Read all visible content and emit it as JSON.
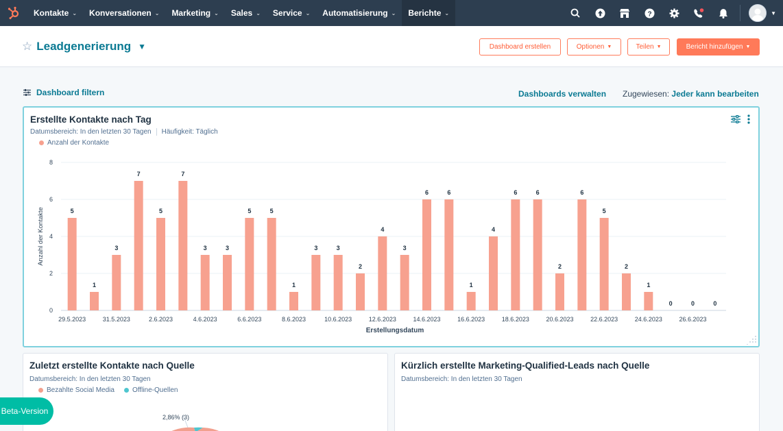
{
  "topnav": {
    "items": [
      "Kontakte",
      "Konversationen",
      "Marketing",
      "Sales",
      "Service",
      "Automatisierung",
      "Berichte"
    ],
    "active_index": 6,
    "brand_color": "#ff7a59"
  },
  "header": {
    "title": "Leadgenerierung",
    "buttons": {
      "create_dashboard": "Dashboard erstellen",
      "options": "Optionen",
      "share": "Teilen",
      "add_report": "Bericht hinzufügen"
    }
  },
  "filterbar": {
    "filter_label": "Dashboard filtern",
    "manage_label": "Dashboards verwalten",
    "assigned_label": "Zugewiesen:",
    "assigned_value": "Jeder kann bearbeiten"
  },
  "card1": {
    "title": "Erstellte Kontakte nach Tag",
    "date_range": "Datumsbereich: In den letzten 30 Tagen",
    "frequency": "Häufigkeit: Täglich"
  },
  "card2": {
    "title": "Zuletzt erstellte Kontakte nach Quelle",
    "date_range": "Datumsbereich: In den letzten 30 Tagen",
    "legend": [
      {
        "name": "Bezahlte Social Media",
        "color": "#f2a08e"
      },
      {
        "name": "Offline-Quellen",
        "color": "#4fc6cf"
      }
    ],
    "pie_label": "2,86% (3)"
  },
  "card3": {
    "title": "Kürzlich erstellte Marketing-Qualified-Leads nach Quelle",
    "date_range": "Datumsbereich: In den letzten 30 Tagen"
  },
  "beta_label": "Beta-Version",
  "chart_data": {
    "type": "bar",
    "title": "Erstellte Kontakte nach Tag",
    "xlabel": "Erstellungsdatum",
    "ylabel": "Anzahl der Kontakte",
    "ylim": [
      0,
      8
    ],
    "yticks": [
      0,
      2,
      4,
      6,
      8
    ],
    "legend": [
      "Anzahl der Kontakte"
    ],
    "legend_position": "top-left",
    "grid": true,
    "bar_color": "#f7a18f",
    "categories": [
      "29.5.2023",
      "30.5.2023",
      "31.5.2023",
      "1.6.2023",
      "2.6.2023",
      "3.6.2023",
      "4.6.2023",
      "5.6.2023",
      "6.6.2023",
      "7.6.2023",
      "8.6.2023",
      "9.6.2023",
      "10.6.2023",
      "11.6.2023",
      "12.6.2023",
      "13.6.2023",
      "14.6.2023",
      "15.6.2023",
      "16.6.2023",
      "17.6.2023",
      "18.6.2023",
      "19.6.2023",
      "20.6.2023",
      "21.6.2023",
      "22.6.2023",
      "23.6.2023",
      "24.6.2023",
      "25.6.2023",
      "26.6.2023",
      "27.6.2023"
    ],
    "values": [
      5,
      1,
      3,
      7,
      5,
      7,
      3,
      3,
      5,
      5,
      1,
      3,
      3,
      2,
      4,
      3,
      6,
      6,
      1,
      4,
      6,
      6,
      2,
      6,
      5,
      2,
      1,
      0,
      0,
      0
    ],
    "xtick_labels": [
      "29.5.2023",
      "31.5.2023",
      "2.6.2023",
      "4.6.2023",
      "6.6.2023",
      "8.6.2023",
      "10.6.2023",
      "12.6.2023",
      "14.6.2023",
      "16.6.2023",
      "18.6.2023",
      "20.6.2023",
      "22.6.2023",
      "24.6.2023",
      "26.6.2023"
    ]
  }
}
